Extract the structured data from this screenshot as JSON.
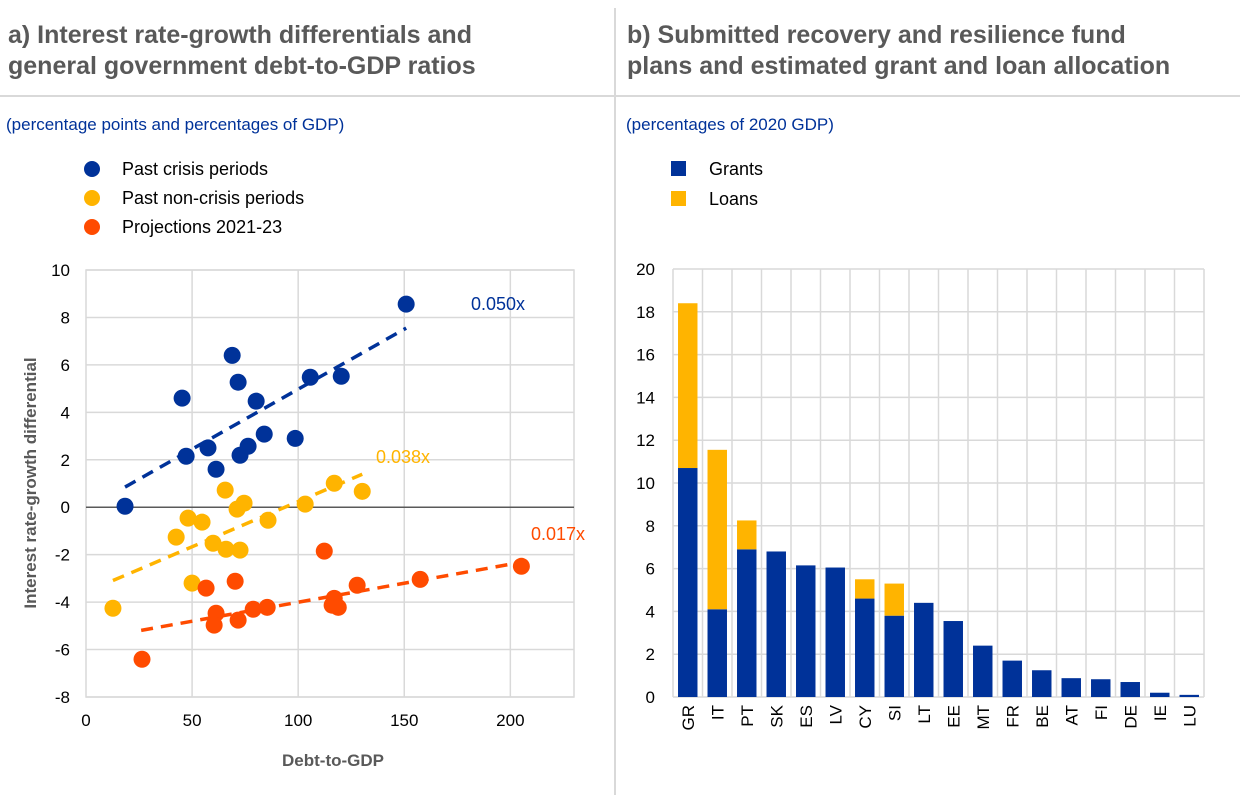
{
  "panels": {
    "a": {
      "title": "a) Interest rate-growth differentials and\ngeneral government debt-to-GDP ratios",
      "subtitle": "(percentage points and percentages of GDP)"
    },
    "b": {
      "title": "b) Submitted recovery and resilience fund\nplans and estimated grant and loan allocation",
      "subtitle": "(percentages of 2020 GDP)"
    }
  },
  "colors": {
    "blue": "#003299",
    "yellow": "#FFB400",
    "orange": "#FF4B00",
    "title_gray": "#595959",
    "grid": "#d9d9d9"
  },
  "chart_data": [
    {
      "type": "scatter",
      "title": "Interest rate-growth differentials and general government debt-to-GDP ratios",
      "xlabel": "Debt-to-GDP",
      "ylabel": "Interest rate-growth differential",
      "xlim": [
        0,
        230
      ],
      "ylim": [
        -8,
        10
      ],
      "xticks": [
        0,
        50,
        100,
        150,
        200
      ],
      "yticks": [
        -8,
        -6,
        -4,
        -2,
        0,
        2,
        4,
        6,
        8,
        10
      ],
      "grid": true,
      "legend_position": "top-left",
      "series": [
        {
          "name": "Past crisis periods",
          "color": "#003299",
          "trend_label": "0.050x",
          "trend": [
            [
              18.4,
              0.85
            ],
            [
              150.9,
              7.55
            ]
          ],
          "points": [
            [
              18.4,
              0.04
            ],
            [
              45.3,
              4.6
            ],
            [
              47.2,
              2.15
            ],
            [
              57.5,
              2.5
            ],
            [
              61.3,
              1.6
            ],
            [
              68.9,
              6.4
            ],
            [
              71.7,
              5.27
            ],
            [
              72.6,
              2.19
            ],
            [
              76.4,
              2.57
            ],
            [
              80.2,
              4.47
            ],
            [
              84.0,
              3.08
            ],
            [
              98.6,
              2.9
            ],
            [
              105.7,
              5.48
            ],
            [
              120.3,
              5.52
            ],
            [
              150.9,
              8.56
            ]
          ]
        },
        {
          "name": "Past non-crisis  periods",
          "color": "#FFB400",
          "trend_label": "0.038x",
          "trend": [
            [
              12.7,
              -3.09
            ],
            [
              130.2,
              1.39
            ]
          ],
          "points": [
            [
              12.7,
              -4.26
            ],
            [
              42.5,
              -1.26
            ],
            [
              48.1,
              -0.46
            ],
            [
              54.7,
              -0.63
            ],
            [
              50.0,
              -3.2
            ],
            [
              59.9,
              -1.52
            ],
            [
              65.6,
              0.72
            ],
            [
              66.0,
              -1.77
            ],
            [
              72.6,
              -1.81
            ],
            [
              71.2,
              -0.08
            ],
            [
              74.5,
              0.17
            ],
            [
              85.8,
              -0.55
            ],
            [
              103.3,
              0.13
            ],
            [
              117.0,
              1.01
            ],
            [
              130.2,
              0.67
            ]
          ]
        },
        {
          "name": "Projections 2021-23",
          "color": "#FF4B00",
          "trend_label": "0.017x",
          "trend": [
            [
              26.0,
              -5.19
            ],
            [
              205.2,
              -2.32
            ]
          ],
          "points": [
            [
              26.4,
              -6.41
            ],
            [
              56.6,
              -3.41
            ],
            [
              61.3,
              -4.47
            ],
            [
              60.4,
              -4.97
            ],
            [
              70.3,
              -3.12
            ],
            [
              71.7,
              -4.76
            ],
            [
              78.8,
              -4.3
            ],
            [
              85.4,
              -4.22
            ],
            [
              112.3,
              -1.85
            ],
            [
              116.0,
              -4.13
            ],
            [
              117.0,
              -3.84
            ],
            [
              118.9,
              -4.22
            ],
            [
              127.8,
              -3.29
            ],
            [
              157.5,
              -3.04
            ],
            [
              205.2,
              -2.49
            ]
          ]
        }
      ]
    },
    {
      "type": "bar",
      "stacked": true,
      "title": "Submitted recovery and resilience fund plans and estimated grant and loan allocation",
      "xlabel": "",
      "ylabel": "",
      "ylim": [
        0,
        20
      ],
      "yticks": [
        0,
        2,
        4,
        6,
        8,
        10,
        12,
        14,
        16,
        18,
        20
      ],
      "grid": true,
      "legend_position": "top-left",
      "categories": [
        "GR",
        "IT",
        "PT",
        "SK",
        "ES",
        "LV",
        "CY",
        "SI",
        "LT",
        "EE",
        "MT",
        "FR",
        "BE",
        "AT",
        "FI",
        "DE",
        "IE",
        "LU"
      ],
      "series": [
        {
          "name": "Grants",
          "color": "#003299",
          "values": [
            10.7,
            4.1,
            6.9,
            6.8,
            6.15,
            6.05,
            4.6,
            3.8,
            4.4,
            3.55,
            2.4,
            1.7,
            1.25,
            0.88,
            0.83,
            0.7,
            0.2,
            0.1
          ]
        },
        {
          "name": "Loans",
          "color": "#FFB400",
          "values": [
            7.7,
            7.45,
            1.35,
            0,
            0,
            0,
            0.9,
            1.5,
            0,
            0,
            0,
            0,
            0,
            0,
            0,
            0,
            0,
            0
          ]
        }
      ]
    }
  ]
}
